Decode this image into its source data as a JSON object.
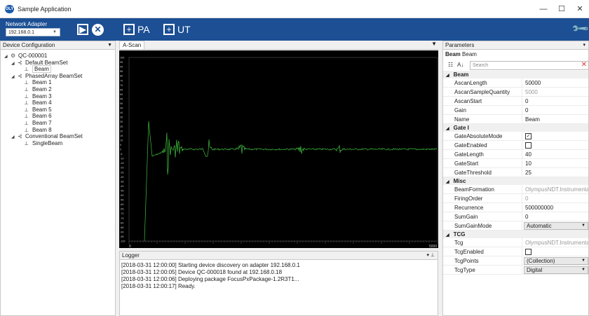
{
  "window": {
    "title": "Sample Application",
    "icon_text": "OLY",
    "minimize": "—",
    "maximize": "☐",
    "close": "✕"
  },
  "toolbar": {
    "adapter_label": "Network Adapter",
    "adapter_value": "192.168.0.1",
    "add_pa": "PA",
    "add_ut": "UT",
    "icons": {
      "play": "play-icon",
      "stop": "stop-icon",
      "add": "plus-icon",
      "settings": "wrench-icon"
    }
  },
  "device_config": {
    "header": "Device Configuration",
    "tree": [
      {
        "label": "QC-000001",
        "level": 0,
        "twisty": "◢",
        "icon": "⚙"
      },
      {
        "label": "Default BeamSet",
        "level": 1,
        "twisty": "◢",
        "icon": "⊰"
      },
      {
        "label": "Beam",
        "level": 2,
        "twisty": "",
        "icon": "⟂",
        "selected": true
      },
      {
        "label": "PhasedArray BeamSet",
        "level": 1,
        "twisty": "◢",
        "icon": "⊰"
      },
      {
        "label": "Beam 1",
        "level": 2,
        "twisty": "",
        "icon": "⟂"
      },
      {
        "label": "Beam 2",
        "level": 2,
        "twisty": "",
        "icon": "⟂"
      },
      {
        "label": "Beam 3",
        "level": 2,
        "twisty": "",
        "icon": "⟂"
      },
      {
        "label": "Beam 4",
        "level": 2,
        "twisty": "",
        "icon": "⟂"
      },
      {
        "label": "Beam 5",
        "level": 2,
        "twisty": "",
        "icon": "⟂"
      },
      {
        "label": "Beam 6",
        "level": 2,
        "twisty": "",
        "icon": "⟂"
      },
      {
        "label": "Beam 7",
        "level": 2,
        "twisty": "",
        "icon": "⟂"
      },
      {
        "label": "Beam 8",
        "level": 2,
        "twisty": "",
        "icon": "⟂"
      },
      {
        "label": "Conventional BeamSet",
        "level": 1,
        "twisty": "◢",
        "icon": "⊰"
      },
      {
        "label": "SingleBeam",
        "level": 2,
        "twisty": "",
        "icon": "⟂"
      }
    ]
  },
  "ascan": {
    "tab_label": "A-Scan",
    "menu_arrow": "▼",
    "x_ticks": [
      "0",
      "5000"
    ],
    "y_ticks": [
      "100",
      "95",
      "90",
      "85",
      "80",
      "75",
      "70",
      "65",
      "60",
      "55",
      "50",
      "45",
      "40",
      "35",
      "30",
      "25",
      "20",
      "15",
      "10",
      "5",
      "0",
      "-5",
      "-10",
      "-15",
      "-20",
      "-25",
      "-30",
      "-35",
      "-40",
      "-45",
      "-50",
      "-55",
      "-60",
      "-65",
      "-70",
      "-75",
      "-80",
      "-85",
      "-90",
      "-95",
      "-100"
    ],
    "trace_color": "#3fbf3f"
  },
  "logger": {
    "header": "Logger",
    "arrows": "▾ ⊥",
    "lines": [
      "[2018-03-31 12:00:00] Starting device discovery on adapter 192.168.0.1",
      "[2018-03-31 12:00:05] Device QC-000018 found at 192.168.0.18",
      "[2018-03-31 12:00:06] Deploying package FocusPxPackage-1.2R3T1...",
      "[2018-03-31 12:00:17] Ready."
    ]
  },
  "parameters": {
    "header": "Parameters",
    "header_arrow": "▾",
    "object_type": "Beam",
    "object_name": "Beam",
    "search_placeholder": "Search",
    "categories": [
      {
        "name": "Beam",
        "rows": [
          {
            "key": "AscanLength",
            "value": "50000"
          },
          {
            "key": "AscanSampleQuantity",
            "value": "5000",
            "gray": true
          },
          {
            "key": "AscanStart",
            "value": "0"
          },
          {
            "key": "Gain",
            "value": "0"
          },
          {
            "key": "Name",
            "value": "Beam"
          }
        ]
      },
      {
        "name": "Gate I",
        "rows": [
          {
            "key": "GateAbsoluteMode",
            "value": "✓",
            "check": true
          },
          {
            "key": "GateEnabled",
            "value": "",
            "check": true
          },
          {
            "key": "GateLength",
            "value": "40"
          },
          {
            "key": "GateStart",
            "value": "10"
          },
          {
            "key": "GateThreshold",
            "value": "25"
          }
        ]
      },
      {
        "name": "Misc",
        "rows": [
          {
            "key": "BeamFormation",
            "value": "OlympusNDT.Instrumentati",
            "gray": true
          },
          {
            "key": "FiringOrder",
            "value": "0",
            "gray": true
          },
          {
            "key": "Recurrence",
            "value": "500000000"
          },
          {
            "key": "SumGain",
            "value": "0"
          },
          {
            "key": "SumGainMode",
            "value": "Automatic",
            "dropdown": true
          }
        ]
      },
      {
        "name": "TCG",
        "rows": [
          {
            "key": "Tcg",
            "value": "OlympusNDT.Instrumentati",
            "gray": true
          },
          {
            "key": "TcgEnabled",
            "value": "",
            "check": true
          },
          {
            "key": "TcgPoints",
            "value": "(Collection)",
            "dropdown": true
          },
          {
            "key": "TcgType",
            "value": "Digital",
            "dropdown": true
          }
        ]
      }
    ]
  }
}
